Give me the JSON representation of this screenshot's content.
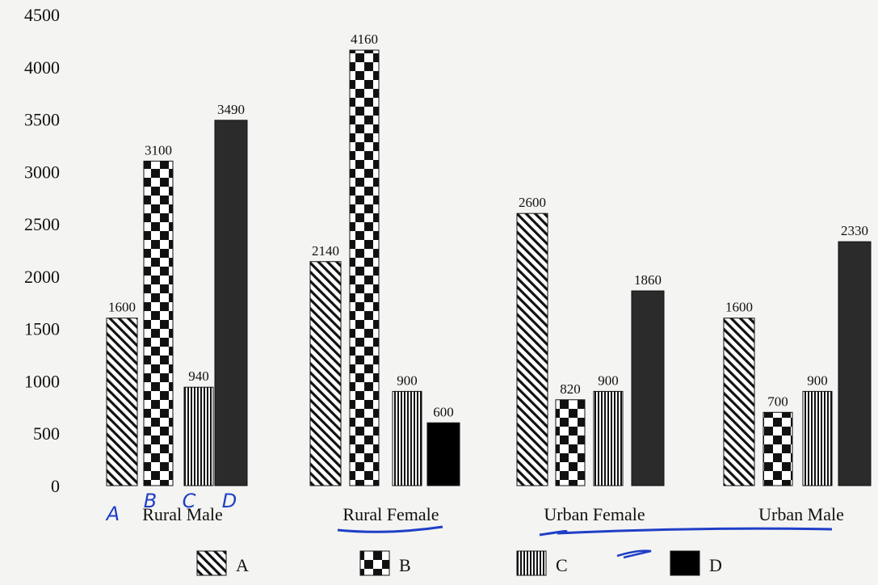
{
  "chart_data": {
    "type": "bar",
    "title": "",
    "xlabel": "",
    "ylabel": "",
    "ylim": [
      0,
      4500
    ],
    "yticks": [
      0,
      500,
      1000,
      1500,
      2000,
      2500,
      3000,
      3500,
      4000,
      4500
    ],
    "categories": [
      "Rural Male",
      "Rural Female",
      "Urban Female",
      "Urban Male"
    ],
    "series": [
      {
        "name": "A",
        "values": [
          1600,
          2140,
          2600,
          1600
        ],
        "pattern": "diagonal-hatch"
      },
      {
        "name": "B",
        "values": [
          3100,
          4160,
          820,
          700
        ],
        "pattern": "checkerboard"
      },
      {
        "name": "C",
        "values": [
          940,
          900,
          900,
          900
        ],
        "pattern": "vertical-lines"
      },
      {
        "name": "D",
        "values": [
          3490,
          600,
          1860,
          2330
        ],
        "pattern": "solid-black"
      }
    ],
    "grid": false,
    "legend_position": "bottom",
    "handwritten_annotations": [
      "A",
      "B",
      "C",
      "D"
    ],
    "colors": {
      "ink": "#111111",
      "solid_dark": "#2b2b2b",
      "handwriting": "#1f3fc7",
      "background": "#f4f4f2"
    }
  }
}
